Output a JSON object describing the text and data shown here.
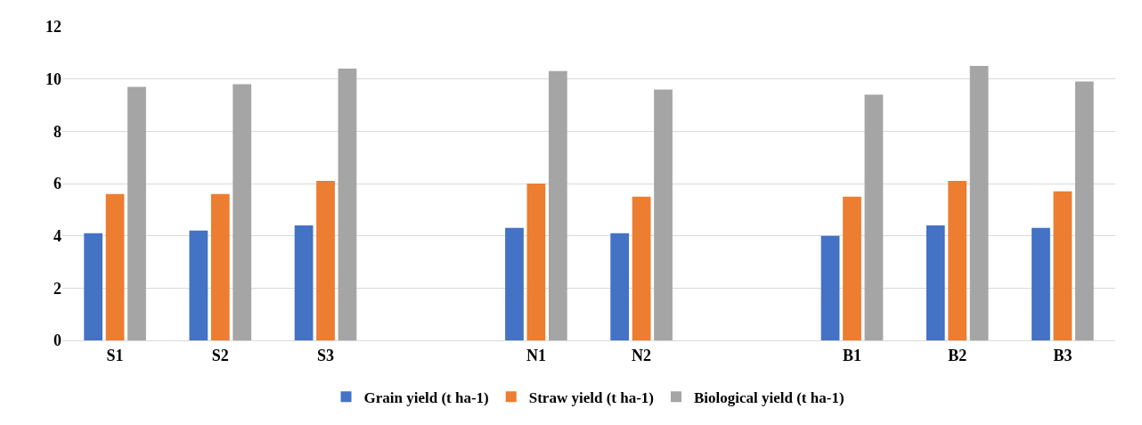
{
  "chart_data": {
    "type": "bar",
    "categories": [
      "S1",
      "S2",
      "S3",
      null,
      "N1",
      "N2",
      null,
      "B1",
      "B2",
      "B3"
    ],
    "series": [
      {
        "name": "Grain yield (t ha-1)",
        "color": "#4472c4",
        "values": [
          4.1,
          4.2,
          4.4,
          null,
          4.3,
          4.1,
          null,
          4.0,
          4.4,
          4.3
        ]
      },
      {
        "name": "Straw yield (t ha-1)",
        "color": "#ed7d31",
        "values": [
          5.6,
          5.6,
          6.1,
          null,
          6.0,
          5.5,
          null,
          5.5,
          6.1,
          5.7
        ]
      },
      {
        "name": "Biological yield (t ha-1)",
        "color": "#a5a5a5",
        "values": [
          9.7,
          9.8,
          10.4,
          null,
          10.3,
          9.6,
          null,
          9.4,
          10.5,
          9.9
        ]
      }
    ],
    "ylim": [
      0,
      12
    ],
    "yticks": [
      0,
      2,
      4,
      6,
      8,
      10,
      12
    ],
    "grid": "y",
    "legend": "bottom"
  }
}
